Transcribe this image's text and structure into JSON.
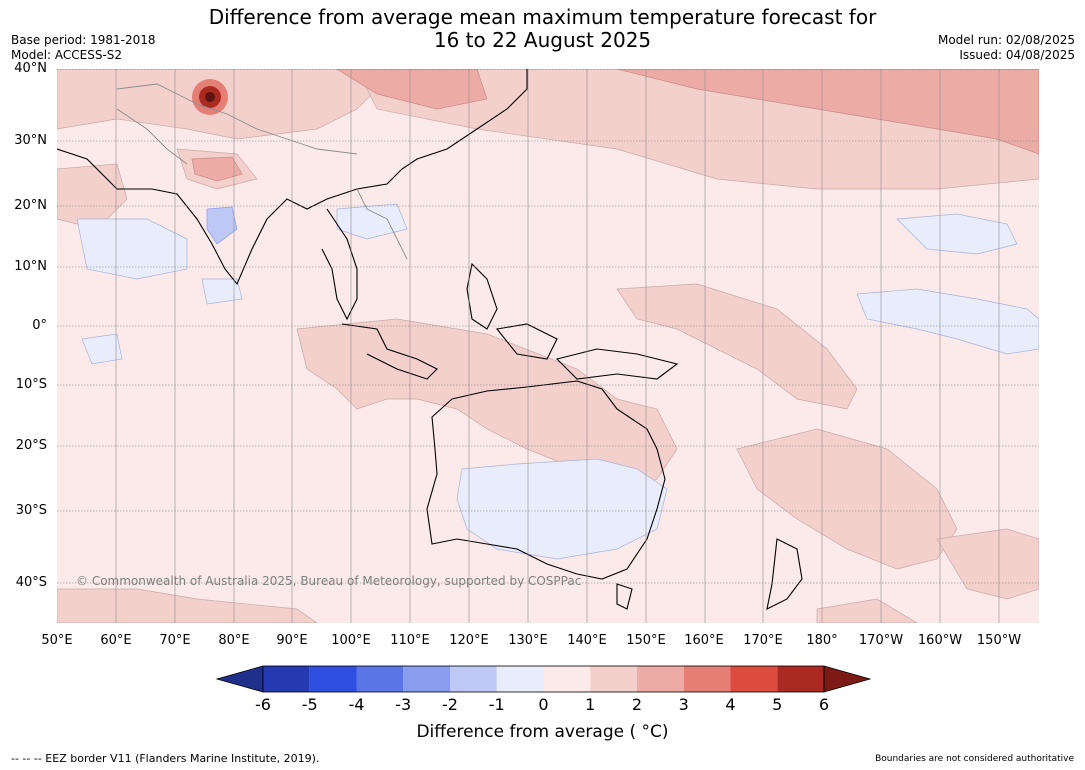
{
  "header": {
    "title_line1": "Difference from average mean maximum temperature forecast for",
    "title_line2": "16 to 22 August 2025",
    "base_period": "Base period: 1981-2018",
    "model": "Model: ACCESS-S2",
    "model_run": "Model run: 02/08/2025",
    "issued": "Issued: 04/08/2025"
  },
  "map": {
    "latitudes": [
      "40°N",
      "30°N",
      "20°N",
      "10°N",
      "0°",
      "10°S",
      "20°S",
      "30°S",
      "40°S"
    ],
    "longitudes": [
      "50°E",
      "60°E",
      "70°E",
      "80°E",
      "90°E",
      "100°E",
      "110°E",
      "120°E",
      "130°E",
      "140°E",
      "150°E",
      "160°E",
      "170°E",
      "180°",
      "170°W",
      "160°W",
      "150°W"
    ],
    "copyright": "© Commonwealth of Australia 2025, Bureau of Meteorology, supported by COSPPac",
    "region_anomaly_c": {
      "ocean_background": "0 to 1",
      "south_australia_interior": "-1 to 0",
      "north_east_pacific_high_latitudes": "2 to 3",
      "himalaya_hotspot": "above 6"
    }
  },
  "colorbar": {
    "title": "Difference from average ( °C)",
    "ticks": [
      "-6",
      "-5",
      "-4",
      "-3",
      "-2",
      "-1",
      "0",
      "1",
      "2",
      "3",
      "4",
      "5",
      "6"
    ],
    "colors": [
      "#1f2f8c",
      "#2539b0",
      "#2f4fe0",
      "#5b74e6",
      "#8a9ced",
      "#bfc7f4",
      "#e9ecfb",
      "#fbeae9",
      "#f4d0cd",
      "#edaba6",
      "#e57f76",
      "#dd4b3e",
      "#aa2a22",
      "#7d1a16"
    ]
  },
  "footer": {
    "eez": "--  --  -- EEZ border V11 (Flanders Marine Institute, 2019).",
    "disclaimer": "Boundaries are not considered authoritative"
  }
}
